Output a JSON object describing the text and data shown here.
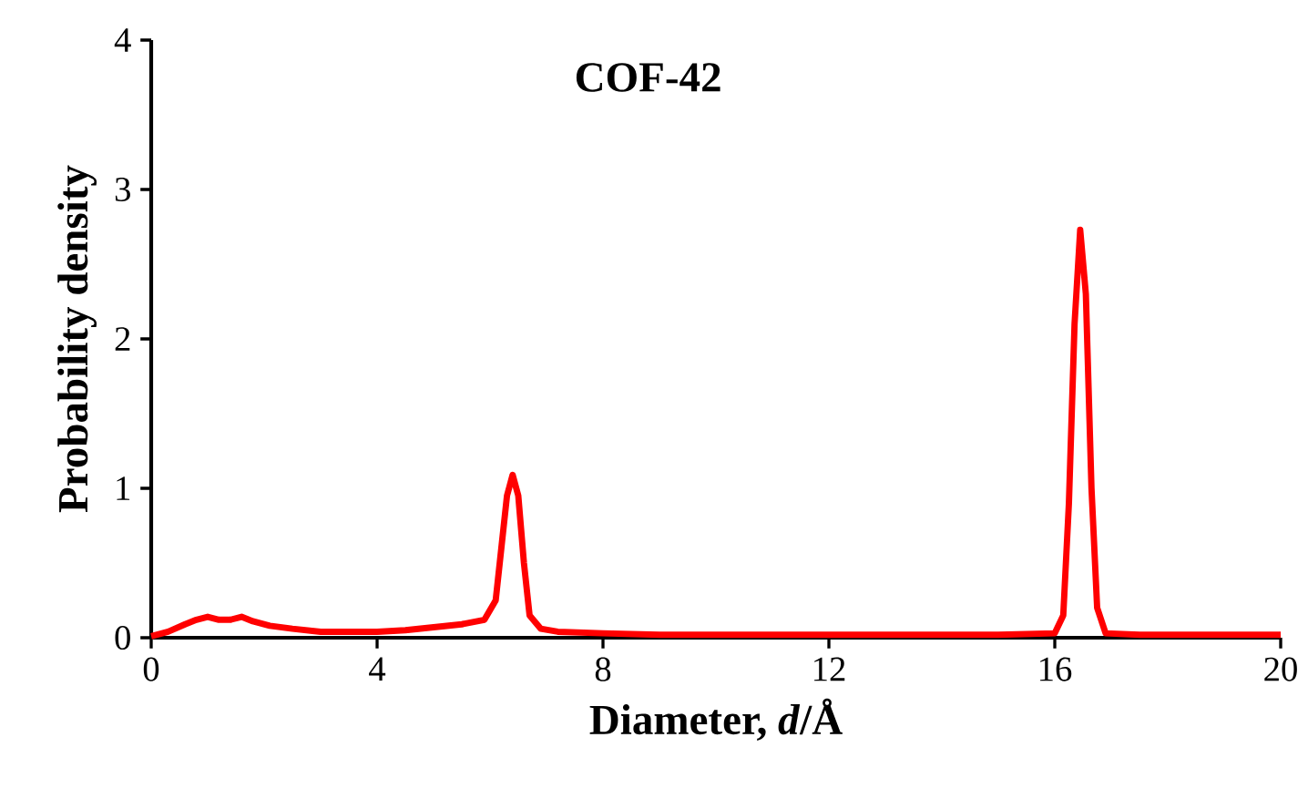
{
  "chart_data": {
    "type": "line",
    "title": "COF-42",
    "xlabel": "Diameter, *d*/Å",
    "ylabel": "Probability density",
    "x": [
      0,
      0.3,
      0.6,
      0.8,
      1.0,
      1.2,
      1.4,
      1.6,
      1.8,
      2.1,
      2.5,
      3.0,
      3.5,
      4.0,
      4.5,
      5.0,
      5.5,
      5.9,
      6.1,
      6.2,
      6.3,
      6.4,
      6.5,
      6.6,
      6.7,
      6.9,
      7.2,
      8,
      9,
      10,
      11,
      12,
      13,
      14,
      15,
      16,
      16.15,
      16.25,
      16.35,
      16.45,
      16.55,
      16.65,
      16.75,
      16.9,
      17.5,
      18,
      19,
      20
    ],
    "series": [
      {
        "color": "#ff0000",
        "values": [
          0.01,
          0.04,
          0.09,
          0.12,
          0.14,
          0.12,
          0.12,
          0.14,
          0.11,
          0.08,
          0.06,
          0.04,
          0.04,
          0.04,
          0.05,
          0.07,
          0.09,
          0.12,
          0.25,
          0.6,
          0.95,
          1.09,
          0.95,
          0.5,
          0.15,
          0.06,
          0.04,
          0.03,
          0.02,
          0.02,
          0.02,
          0.02,
          0.02,
          0.02,
          0.02,
          0.03,
          0.15,
          0.9,
          2.1,
          2.73,
          2.3,
          1.0,
          0.2,
          0.03,
          0.02,
          0.02,
          0.02,
          0.02
        ]
      }
    ],
    "xlim": [
      0,
      20
    ],
    "xticks": [
      0,
      4,
      8,
      12,
      16,
      20
    ],
    "ylim": [
      0,
      4
    ],
    "yticks": [
      0,
      1,
      2,
      3,
      4
    ],
    "marker": "none",
    "line_style": "solid"
  }
}
